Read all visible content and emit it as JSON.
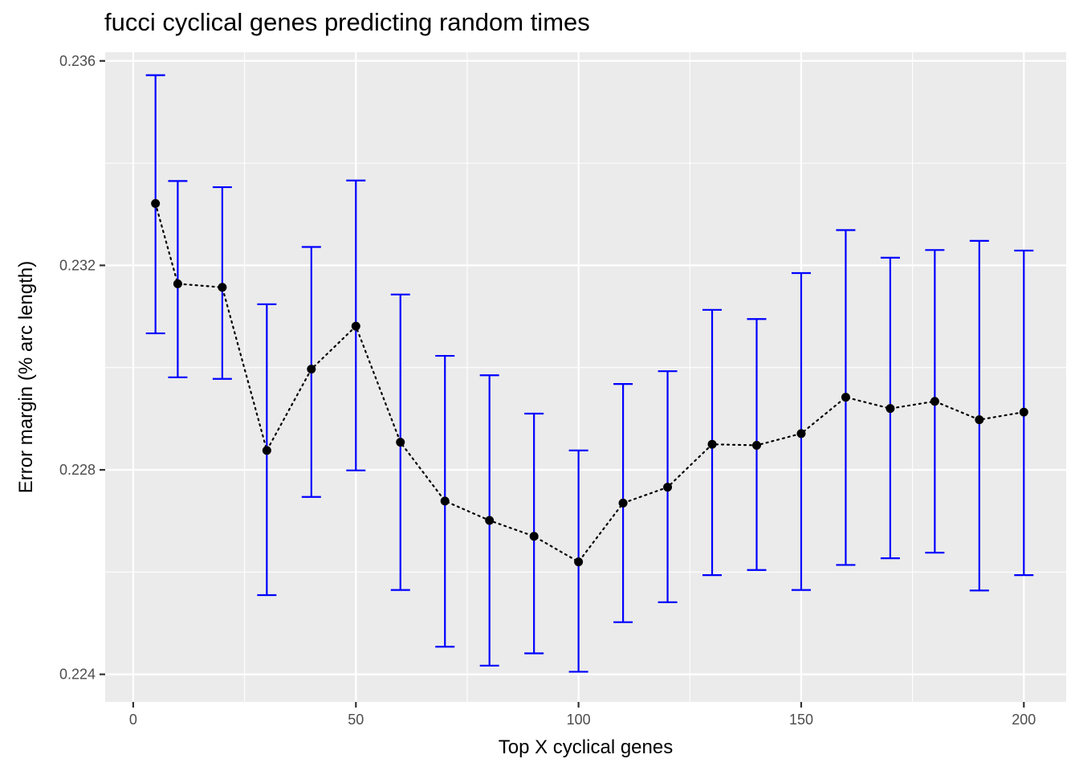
{
  "chart_data": {
    "type": "line",
    "title": "fucci cyclical genes predicting random times",
    "xlabel": "Top X cyclical genes",
    "ylabel": "Error margin (% arc length)",
    "xlim": [
      -6.3,
      209.5
    ],
    "ylim": [
      0.22346,
      0.23617
    ],
    "x_ticks": [
      0,
      50,
      100,
      150,
      200
    ],
    "x_tick_labels": [
      "0",
      "50",
      "100",
      "150",
      "200"
    ],
    "y_ticks": [
      0.224,
      0.228,
      0.232,
      0.236
    ],
    "y_tick_labels": [
      "0.224",
      "0.228",
      "0.232",
      "0.236"
    ],
    "grid": true,
    "line_style": "dotted",
    "point_color": "#000000",
    "errorbar_color": "#0000ff",
    "panel_background": "#ebebeb",
    "series": [
      {
        "x": [
          5,
          10,
          20,
          30,
          40,
          50,
          60,
          70,
          80,
          90,
          100,
          110,
          120,
          130,
          140,
          150,
          160,
          170,
          180,
          190,
          200
        ],
        "y": [
          0.23321,
          0.23164,
          0.23157,
          0.22838,
          0.22997,
          0.23081,
          0.22854,
          0.22739,
          0.22701,
          0.2267,
          0.2262,
          0.22735,
          0.22766,
          0.2285,
          0.22848,
          0.22871,
          0.22942,
          0.2292,
          0.22934,
          0.22898,
          0.22913
        ],
        "ymin": [
          0.23067,
          0.22981,
          0.22978,
          0.22555,
          0.22747,
          0.22799,
          0.22565,
          0.22454,
          0.22417,
          0.22441,
          0.22405,
          0.22502,
          0.22541,
          0.22594,
          0.22604,
          0.22565,
          0.22614,
          0.22627,
          0.22638,
          0.22564,
          0.22594
        ],
        "ymax": [
          0.23572,
          0.23365,
          0.23353,
          0.23124,
          0.23236,
          0.23366,
          0.23143,
          0.23023,
          0.22985,
          0.2291,
          0.22838,
          0.22968,
          0.22993,
          0.23113,
          0.23095,
          0.23185,
          0.23269,
          0.23215,
          0.2323,
          0.23248,
          0.23229
        ]
      }
    ]
  }
}
